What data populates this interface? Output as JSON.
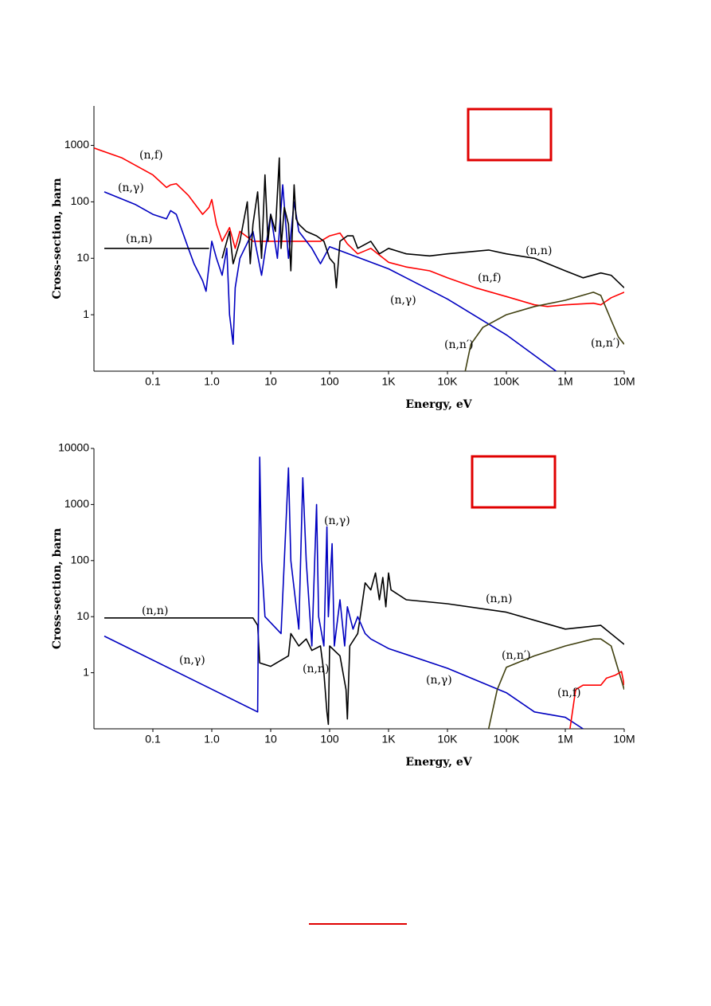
{
  "chart_data": [
    {
      "type": "line",
      "log_x": true,
      "log_y": true,
      "x_label": "Energy, eV",
      "y_label": "Cross-section, barn",
      "xlim": [
        0.01,
        10000000
      ],
      "ylim": [
        0.1,
        5000
      ],
      "xticks": [
        0.1,
        {
          "value": 1,
          "label": "1.0"
        },
        10,
        100,
        {
          "value": 1000,
          "label": "1K"
        },
        {
          "value": 10000,
          "label": "10K"
        },
        {
          "value": 100000,
          "label": "100K"
        },
        {
          "value": 1000000,
          "label": "1M"
        },
        {
          "value": 10000000,
          "label": "10M"
        }
      ],
      "yticks": [
        1,
        10,
        100,
        1000
      ],
      "series": [
        {
          "name": "(n,f)",
          "color": "#ff0000",
          "x": [
            0.01,
            0.03,
            0.1,
            0.17,
            0.2,
            0.25,
            0.4,
            0.7,
            0.9,
            1,
            1.2,
            1.5,
            2,
            2.5,
            3,
            5,
            70,
            100,
            150,
            200,
            300,
            500,
            1000,
            2000,
            5000,
            10000,
            30000,
            100000,
            300000,
            500000,
            1000000,
            3000000,
            4000000,
            6000000,
            10000000
          ],
          "values": [
            900,
            600,
            300,
            180,
            200,
            210,
            130,
            60,
            80,
            110,
            40,
            20,
            35,
            15,
            30,
            20,
            20,
            25,
            28,
            18,
            12,
            15,
            8.5,
            7,
            6,
            4.5,
            3,
            2.1,
            1.5,
            1.4,
            1.5,
            1.6,
            1.5,
            2,
            2.5
          ]
        },
        {
          "name": "(n,γ)",
          "color": "#0000c0",
          "x": [
            0.015,
            0.05,
            0.1,
            0.17,
            0.2,
            0.25,
            0.4,
            0.5,
            0.7,
            0.8,
            1,
            1.2,
            1.5,
            1.8,
            2,
            2.3,
            2.5,
            3,
            5,
            7,
            10,
            13,
            16,
            20,
            25,
            30,
            50,
            70,
            100,
            1000,
            10000,
            100000,
            700000
          ],
          "values": [
            150,
            90,
            60,
            50,
            70,
            60,
            15,
            8,
            4,
            2.6,
            20,
            10,
            5,
            15,
            1,
            0.3,
            3,
            10,
            30,
            5,
            60,
            10,
            200,
            10,
            100,
            30,
            15,
            8,
            16,
            6.5,
            1.9,
            0.44,
            0.1
          ]
        },
        {
          "name": "(n,n)",
          "color": "#000000",
          "x": [
            0.015,
            0.9,
            1.2,
            1.5,
            2,
            2.3,
            3,
            4,
            4.5,
            5,
            6,
            7,
            8,
            9,
            10,
            12,
            14,
            15,
            17,
            20,
            22,
            25,
            27,
            30,
            40,
            60,
            80,
            100,
            120,
            130,
            150,
            200,
            250,
            300,
            500,
            700,
            1000,
            2000,
            5000,
            10000,
            50000,
            100000,
            300000,
            1000000,
            2000000,
            4000000,
            6000000,
            10000000
          ],
          "values": [
            15,
            15,
            null,
            10,
            30,
            8,
            20,
            100,
            8,
            40,
            150,
            10,
            300,
            20,
            60,
            30,
            600,
            15,
            80,
            40,
            6,
            200,
            50,
            40,
            30,
            25,
            20,
            10,
            8,
            3,
            20,
            25,
            25,
            15,
            20,
            12,
            15,
            12,
            11,
            12,
            14,
            12,
            10,
            6,
            4.5,
            5.5,
            5,
            3
          ]
        },
        {
          "name": "(n,n′)",
          "color": "#404010",
          "x": [
            20000,
            25000,
            40000,
            100000,
            300000,
            1000000,
            3000000,
            4000000,
            6000000,
            8000000,
            10000000
          ],
          "values": [
            0.1,
            0.3,
            0.6,
            1,
            1.4,
            1.8,
            2.5,
            2.2,
            0.8,
            0.4,
            0.3
          ]
        }
      ]
    },
    {
      "type": "line",
      "log_x": true,
      "log_y": true,
      "x_label": "Energy, eV",
      "y_label": "Cross-section, barn",
      "xlim": [
        0.01,
        10000000
      ],
      "ylim": [
        0.1,
        10000
      ],
      "xticks": [
        0.1,
        {
          "value": 1,
          "label": "1.0"
        },
        10,
        100,
        {
          "value": 1000,
          "label": "1K"
        },
        {
          "value": 10000,
          "label": "10K"
        },
        {
          "value": 100000,
          "label": "100K"
        },
        {
          "value": 1000000,
          "label": "1M"
        },
        {
          "value": 10000000,
          "label": "10M"
        }
      ],
      "yticks": [
        1,
        10,
        100,
        1000,
        10000
      ],
      "series": [
        {
          "name": "(n,n)",
          "color": "#000000",
          "x": [
            0.015,
            5,
            6,
            6.5,
            10,
            20,
            22,
            30,
            40,
            50,
            70,
            80,
            90,
            95,
            100,
            150,
            190,
            200,
            220,
            300,
            350,
            400,
            500,
            600,
            700,
            800,
            900,
            1000,
            1100,
            2000,
            10000,
            100000,
            1000000,
            2000000,
            4000000,
            10000000
          ],
          "values": [
            9.5,
            9.5,
            7,
            1.5,
            1.3,
            2,
            5,
            3,
            4,
            2.5,
            3,
            1,
            0.2,
            0.12,
            3,
            2,
            0.5,
            0.15,
            3,
            5,
            15,
            40,
            30,
            60,
            20,
            50,
            15,
            60,
            30,
            20,
            17,
            12,
            6,
            6.5,
            7,
            3.2
          ]
        },
        {
          "name": "(n,γ)",
          "color": "#0000c0",
          "x": [
            0.015,
            6,
            6.5,
            7,
            8,
            15,
            20,
            22,
            30,
            35,
            40,
            50,
            60,
            65,
            80,
            90,
            95,
            110,
            120,
            150,
            180,
            200,
            250,
            300,
            400,
            500,
            1000,
            10000,
            100000,
            300000,
            1000000,
            2000000
          ],
          "values": [
            4.5,
            0.2,
            7000,
            100,
            10,
            5,
            4500,
            100,
            6,
            3000,
            100,
            3,
            1000,
            10,
            3,
            400,
            10,
            200,
            3,
            20,
            3,
            15,
            6,
            10,
            5,
            4,
            2.7,
            1.2,
            0.44,
            0.2,
            0.16,
            0.1
          ]
        },
        {
          "name": "(n,n′)",
          "color": "#404010",
          "x": [
            50000,
            70000,
            100000,
            300000,
            1000000,
            3000000,
            4000000,
            6000000,
            10000000
          ],
          "values": [
            0.1,
            0.5,
            1.25,
            2,
            3,
            4,
            4,
            3,
            0.5
          ]
        },
        {
          "name": "(n,f)",
          "color": "#ff0000",
          "x": [
            1200000,
            1500000,
            2000000,
            4000000,
            5000000,
            7000000,
            9000000,
            10000000
          ],
          "values": [
            0.1,
            0.5,
            0.6,
            0.6,
            0.8,
            0.9,
            1.05,
            0.6
          ]
        }
      ]
    }
  ]
}
